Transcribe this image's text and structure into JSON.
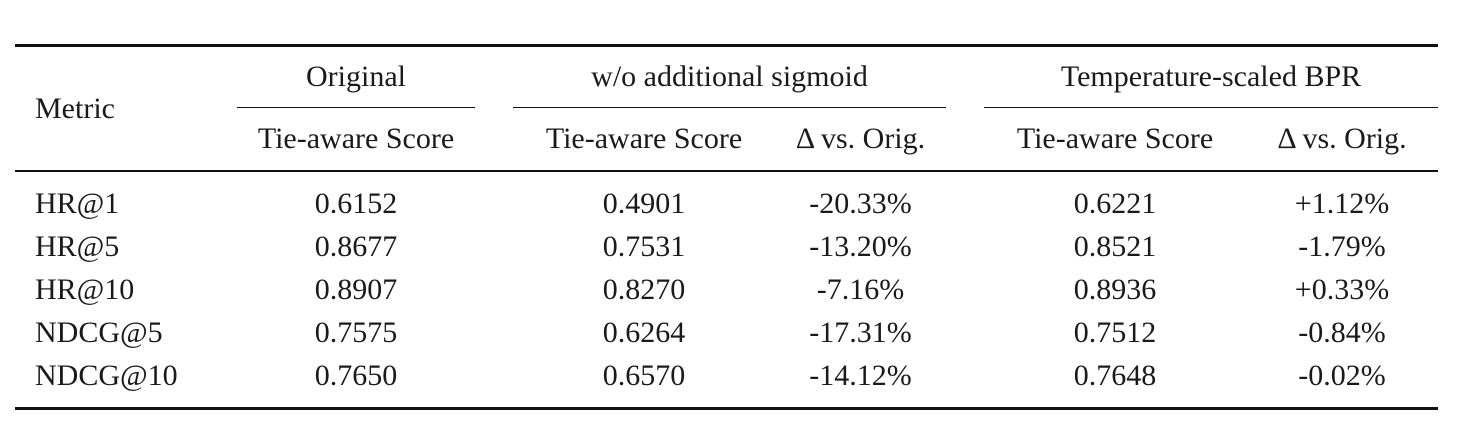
{
  "table": {
    "metric_header": "Metric",
    "groups": {
      "original": "Original",
      "no_sigmoid": "w/o additional sigmoid",
      "temp_bpr": "Temperature-scaled BPR"
    },
    "subheaders": {
      "orig_score": "Tie-aware Score",
      "nosig_score": "Tie-aware Score",
      "nosig_delta": "Δ vs. Orig.",
      "temp_score": "Tie-aware Score",
      "temp_delta": "Δ vs. Orig."
    },
    "rows": [
      {
        "metric": "HR@1",
        "orig": "0.6152",
        "nosig": "0.4901",
        "nosig_delta": "-20.33%",
        "temp": "0.6221",
        "temp_delta": "+1.12%"
      },
      {
        "metric": "HR@5",
        "orig": "0.8677",
        "nosig": "0.7531",
        "nosig_delta": "-13.20%",
        "temp": "0.8521",
        "temp_delta": "-1.79%"
      },
      {
        "metric": "HR@10",
        "orig": "0.8907",
        "nosig": "0.8270",
        "nosig_delta": "-7.16%",
        "temp": "0.8936",
        "temp_delta": "+0.33%"
      },
      {
        "metric": "NDCG@5",
        "orig": "0.7575",
        "nosig": "0.6264",
        "nosig_delta": "-17.31%",
        "temp": "0.7512",
        "temp_delta": "-0.84%"
      },
      {
        "metric": "NDCG@10",
        "orig": "0.7650",
        "nosig": "0.6570",
        "nosig_delta": "-14.12%",
        "temp": "0.7648",
        "temp_delta": "-0.02%"
      }
    ]
  }
}
